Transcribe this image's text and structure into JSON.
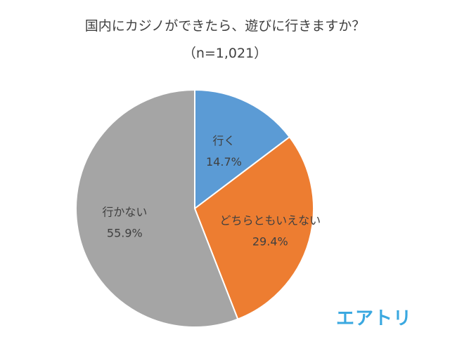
{
  "chart_data": {
    "type": "pie",
    "title": "国内にカジノができたら、遊びに行きますか？",
    "subtitle": "（n=1,021）",
    "slices": [
      {
        "label": "行く",
        "value": 14.7,
        "value_label": "14.7%",
        "color": "#5b9bd5"
      },
      {
        "label": "どちらともいえない",
        "value": 29.4,
        "value_label": "29.4%",
        "color": "#ed7d31"
      },
      {
        "label": "行かない",
        "value": 55.9,
        "value_label": "55.9%",
        "color": "#a5a5a5"
      }
    ],
    "start": "12 o'clock",
    "direction": "clockwise",
    "legend": "none",
    "slice_border_color": "#ffffff"
  },
  "branding": {
    "logo_text": "エアトリ",
    "logo_color": "#3aa8e0"
  }
}
